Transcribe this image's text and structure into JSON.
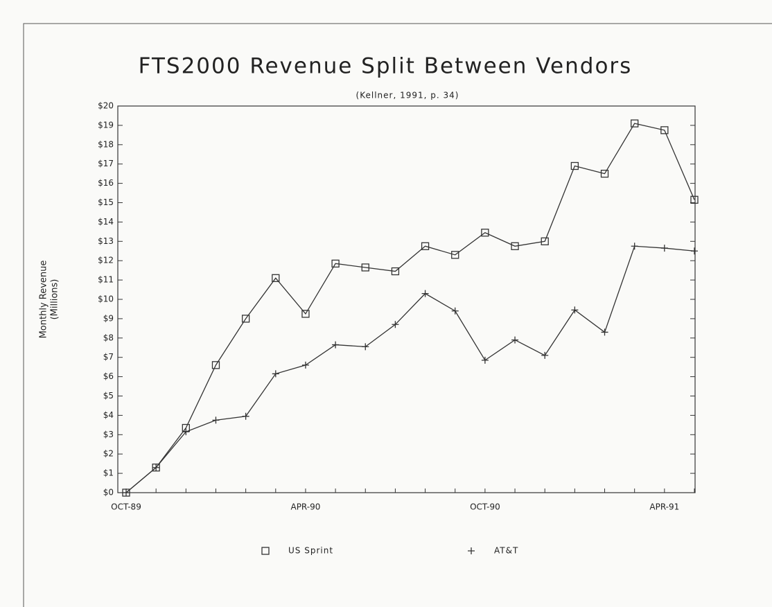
{
  "chart_data": {
    "type": "line",
    "title": "FTS2000 Revenue Split Between Vendors",
    "subtitle": "(Kellner, 1991, p. 34)",
    "y_label": [
      "Monthly Revenue",
      "(Millions)"
    ],
    "categories": [
      "OCT-89",
      null,
      null,
      null,
      null,
      null,
      "APR-90",
      null,
      null,
      null,
      null,
      null,
      "OCT-90",
      null,
      null,
      null,
      null,
      null,
      "APR-91",
      null
    ],
    "series": [
      {
        "name": "US Sprint",
        "color": "#333333",
        "marker": "square",
        "values": [
          0,
          1.3,
          3.35,
          6.6,
          9.0,
          11.1,
          9.25,
          11.85,
          11.65,
          11.45,
          12.75,
          12.3,
          13.45,
          12.75,
          13.0,
          16.9,
          16.5,
          19.1,
          18.75,
          15.15
        ]
      },
      {
        "name": "AT&T",
        "color": "#333333",
        "marker": "plus",
        "values": [
          0,
          1.3,
          3.15,
          3.75,
          3.95,
          6.15,
          6.6,
          7.65,
          7.55,
          8.7,
          10.3,
          9.4,
          6.85,
          7.9,
          7.1,
          9.45,
          8.3,
          12.75,
          12.65,
          12.5
        ]
      }
    ],
    "ylim": [
      0,
      20
    ],
    "yticks": [
      {
        "value": 0,
        "label": "$0"
      },
      {
        "value": 1,
        "label": "$1"
      },
      {
        "value": 2,
        "label": "$2"
      },
      {
        "value": 3,
        "label": "$3"
      },
      {
        "value": 4,
        "label": "$4"
      },
      {
        "value": 5,
        "label": "$5"
      },
      {
        "value": 6,
        "label": "$6"
      },
      {
        "value": 7,
        "label": "$7"
      },
      {
        "value": 8,
        "label": "$8"
      },
      {
        "value": 9,
        "label": "$9"
      },
      {
        "value": 10,
        "label": "$10"
      },
      {
        "value": 11,
        "label": "$11"
      },
      {
        "value": 12,
        "label": "$12"
      },
      {
        "value": 13,
        "label": "$13"
      },
      {
        "value": 14,
        "label": "$14"
      },
      {
        "value": 15,
        "label": "$15"
      },
      {
        "value": 16,
        "label": "$16"
      },
      {
        "value": 17,
        "label": "$17"
      },
      {
        "value": 18,
        "label": "$18"
      },
      {
        "value": 19,
        "label": "$19"
      },
      {
        "value": 20,
        "label": "$20"
      }
    ],
    "grid": false,
    "legend": "bottom"
  }
}
